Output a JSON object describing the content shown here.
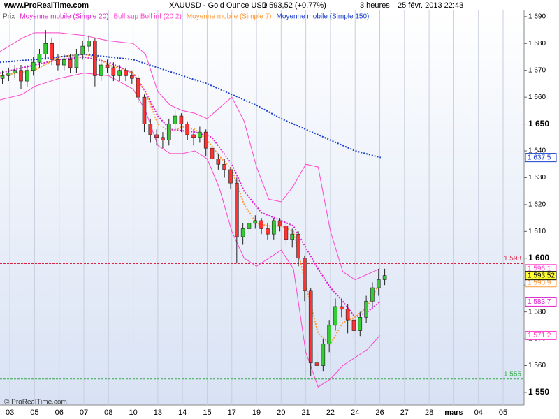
{
  "chart_data": {
    "type": "candlestick",
    "site": "www.ProRealTime.com",
    "title": "XAUUSD - Gold Ounce USD",
    "quote": "1 593,52 (+0,77%)",
    "interval": "3 heures",
    "timestamp": "25 févr. 2013 22:43",
    "copyright": "© ProRealTime.com",
    "price_name": "Prix",
    "price_color": "#555555",
    "up_color": "#33cc33",
    "down_color": "#ff3333",
    "xlim": [
      -0.4,
      20.85
    ],
    "xticks": [
      {
        "value": 0,
        "label": "03"
      },
      {
        "value": 1,
        "label": "05"
      },
      {
        "value": 2,
        "label": "06"
      },
      {
        "value": 3,
        "label": "07"
      },
      {
        "value": 4,
        "label": "08"
      },
      {
        "value": 5,
        "label": "10"
      },
      {
        "value": 6,
        "label": "13"
      },
      {
        "value": 7,
        "label": "14"
      },
      {
        "value": 8,
        "label": "15"
      },
      {
        "value": 9,
        "label": "17"
      },
      {
        "value": 10,
        "label": "19"
      },
      {
        "value": 11,
        "label": "20"
      },
      {
        "value": 12,
        "label": "21"
      },
      {
        "value": 13,
        "label": "22"
      },
      {
        "value": 14,
        "label": "24"
      },
      {
        "value": 15,
        "label": "26"
      },
      {
        "value": 16,
        "label": "27"
      },
      {
        "value": 17,
        "label": "28"
      },
      {
        "value": 18,
        "label": "mars"
      },
      {
        "value": 19,
        "label": "04"
      },
      {
        "value": 20,
        "label": "05"
      }
    ],
    "ylim": [
      1545.3,
      1692.3
    ],
    "yticks": [
      {
        "value": 1550,
        "label": "1 550"
      },
      {
        "value": 1560,
        "label": "1 560"
      },
      {
        "value": 1570,
        "label": "1 570"
      },
      {
        "value": 1580,
        "label": "1 580"
      },
      {
        "value": 1590,
        "label": "1 590"
      },
      {
        "value": 1600,
        "label": "1 600"
      },
      {
        "value": 1610,
        "label": "1 610"
      },
      {
        "value": 1620,
        "label": "1 620"
      },
      {
        "value": 1630,
        "label": "1 630"
      },
      {
        "value": 1640,
        "label": "1 640"
      },
      {
        "value": 1650,
        "label": "1 650"
      },
      {
        "value": 1660,
        "label": "1 660"
      },
      {
        "value": 1670,
        "label": "1 670"
      },
      {
        "value": 1680,
        "label": "1 680"
      },
      {
        "value": 1690,
        "label": "1 690"
      }
    ],
    "x": [
      -0.3,
      -0.05,
      0.2,
      0.45,
      0.7,
      0.95,
      1.2,
      1.45,
      1.7,
      1.95,
      2.2,
      2.45,
      2.7,
      2.95,
      3.2,
      3.45,
      3.7,
      3.95,
      4.2,
      4.45,
      4.7,
      4.95,
      5.2,
      5.45,
      5.7,
      5.95,
      6.2,
      6.45,
      6.7,
      6.95,
      7.2,
      7.45,
      7.7,
      7.95,
      8.2,
      8.45,
      8.7,
      8.95,
      9.2,
      9.45,
      9.7,
      9.95,
      10.2,
      10.45,
      10.7,
      10.95,
      11.2,
      11.45,
      11.7,
      11.95,
      12.2,
      12.45,
      12.7,
      12.95,
      13.2,
      13.45,
      13.7,
      13.95,
      14.2,
      14.45,
      14.7,
      14.95,
      15.2
    ],
    "open": [
      1667,
      1668,
      1669,
      1670,
      1666,
      1670,
      1673,
      1676,
      1680,
      1674,
      1672,
      1674,
      1671,
      1676,
      1679,
      1681,
      1668,
      1672,
      1671,
      1668,
      1670,
      1668,
      1667,
      1660,
      1650,
      1646,
      1645,
      1644,
      1650,
      1653,
      1650,
      1646,
      1645,
      1647,
      1641,
      1637,
      1635,
      1633,
      1628,
      1608,
      1611,
      1613,
      1614,
      1611,
      1609,
      1614,
      1612,
      1607,
      1609,
      1600,
      1588,
      1561,
      1560,
      1568,
      1575,
      1582,
      1581,
      1577,
      1573,
      1578,
      1584,
      1589,
      1592
    ],
    "high": [
      1670,
      1671,
      1672,
      1672,
      1672,
      1675,
      1678,
      1685,
      1682,
      1676,
      1676,
      1676,
      1678,
      1681,
      1683,
      1682,
      1674,
      1674,
      1673,
      1672,
      1671,
      1670,
      1668,
      1661,
      1652,
      1648,
      1647,
      1652,
      1655,
      1654,
      1651,
      1648,
      1649,
      1648,
      1642,
      1639,
      1637,
      1634,
      1630,
      1613,
      1615,
      1616,
      1615,
      1613,
      1615,
      1615,
      1613,
      1611,
      1610,
      1601,
      1589,
      1566,
      1570,
      1577,
      1585,
      1585,
      1583,
      1579,
      1580,
      1586,
      1591,
      1596,
      1596.1
    ],
    "low": [
      1665,
      1666,
      1667,
      1663,
      1664,
      1668,
      1671,
      1674,
      1672,
      1670,
      1670,
      1669,
      1669,
      1674,
      1677,
      1664,
      1666,
      1669,
      1666,
      1666,
      1666,
      1665,
      1658,
      1647,
      1643,
      1642,
      1641,
      1642,
      1648,
      1647,
      1644,
      1642,
      1643,
      1638,
      1634,
      1633,
      1630,
      1626,
      1598,
      1605,
      1609,
      1611,
      1609,
      1607,
      1607,
      1610,
      1605,
      1604,
      1597,
      1584,
      1556,
      1558,
      1558,
      1565,
      1573,
      1578,
      1572,
      1570,
      1571,
      1576,
      1582,
      1586,
      1590
    ],
    "close": [
      1668,
      1669,
      1670,
      1666,
      1670,
      1673,
      1676,
      1680,
      1674,
      1672,
      1674,
      1671,
      1676,
      1679,
      1681,
      1668,
      1672,
      1671,
      1668,
      1670,
      1668,
      1667,
      1660,
      1650,
      1646,
      1645,
      1644,
      1650,
      1653,
      1650,
      1646,
      1645,
      1647,
      1641,
      1637,
      1635,
      1633,
      1628,
      1608,
      1611,
      1613,
      1614,
      1611,
      1609,
      1614,
      1612,
      1607,
      1609,
      1600,
      1588,
      1561,
      1560,
      1568,
      1575,
      1582,
      1581,
      1577,
      1573,
      1578,
      1584,
      1589,
      1592,
      1593.52
    ],
    "series": [
      {
        "name": "Moyenne mobile (Simple 20)",
        "color": "#e020d0",
        "dashed": true,
        "x": [
          -0.4,
          1,
          2,
          3,
          4,
          5,
          5.5,
          6,
          6.5,
          7.5,
          8.2,
          9,
          9.5,
          10.2,
          11,
          11.5,
          12,
          12.5,
          13,
          13.5,
          14,
          14.5,
          15
        ],
        "values": [
          1669,
          1672,
          1674,
          1675,
          1673,
          1669,
          1662,
          1653,
          1648,
          1647,
          1645,
          1635,
          1625,
          1617,
          1614,
          1612,
          1604,
          1596,
          1589,
          1584,
          1578,
          1580,
          1583.7
        ]
      },
      {
        "name": "Boll sup Boll inf (20 2)",
        "color": "#ff44cc",
        "dashed": false,
        "x": [
          -0.4,
          0.5,
          1,
          2,
          3,
          3.5,
          4,
          5,
          5.5,
          6,
          6.5,
          7,
          7.5,
          8,
          8.5,
          9,
          9.5,
          10,
          10.5,
          11,
          11.5,
          12,
          12.5,
          13,
          13.5,
          14,
          14.5,
          15
        ],
        "values": [
          1677,
          1682,
          1684,
          1684,
          1683,
          1682,
          1681,
          1680,
          1676,
          1662,
          1657,
          1655,
          1654,
          1652,
          1656,
          1660,
          1651,
          1634,
          1622,
          1621,
          1627,
          1635,
          1634,
          1610,
          1595,
          1592,
          1594,
          1596.1
        ],
        "x2": [
          -0.4,
          0.5,
          1,
          2,
          3,
          4,
          5,
          5.5,
          6,
          6.5,
          7,
          7.5,
          8,
          8.5,
          9,
          9.5,
          10,
          10.5,
          11,
          11.5,
          12,
          12.5,
          13,
          13.5,
          14,
          14.5,
          15
        ],
        "values2": [
          1659,
          1661,
          1664,
          1667,
          1669,
          1668,
          1663,
          1655,
          1642,
          1639,
          1639,
          1640,
          1637,
          1626,
          1610,
          1600,
          1597,
          1600,
          1603,
          1596,
          1565,
          1552,
          1555,
          1560,
          1563,
          1566,
          1571.2
        ]
      },
      {
        "name": "Moyenne mobile (Simple 7)",
        "color": "#ff9933",
        "dashed": true,
        "x": [
          -0.4,
          1,
          2,
          3,
          3.5,
          4,
          5,
          5.5,
          6,
          6.5,
          7,
          7.5,
          8,
          8.5,
          9,
          9.5,
          10,
          10.5,
          11,
          11.5,
          12,
          12.5,
          13,
          13.5,
          14,
          14.5,
          15
        ],
        "values": [
          1668,
          1670,
          1675,
          1676,
          1675,
          1672,
          1669,
          1662,
          1650,
          1647,
          1649,
          1648,
          1644,
          1638,
          1633,
          1620,
          1613,
          1612,
          1612,
          1610,
          1590,
          1572,
          1568,
          1576,
          1578,
          1582,
          1590.9
        ]
      },
      {
        "name": "Moyenne mobile (Simple 150)",
        "color": "#1a3fcc",
        "dashed": true,
        "x": [
          -0.4,
          1,
          2,
          3,
          4,
          5,
          6,
          7,
          8,
          9,
          10,
          11,
          12,
          13,
          14,
          15.04
        ],
        "values": [
          1673,
          1674,
          1675,
          1676,
          1675,
          1674,
          1671,
          1668,
          1665,
          1661,
          1657,
          1652,
          1648,
          1644,
          1640,
          1637.5
        ]
      }
    ],
    "levels": [
      {
        "value": 1598,
        "label": "1 598",
        "color": "#dd2244"
      },
      {
        "value": 1555,
        "label": "1 555",
        "color": "#33aa44"
      }
    ],
    "tags": [
      {
        "value": 1637.5,
        "label": "1 637,5",
        "color": "#1a3fcc",
        "bg": "#ffffff"
      },
      {
        "value": 1596.1,
        "label": "1 596,1",
        "color": "#ff44cc",
        "bg": "#ffffff"
      },
      {
        "value": 1590.9,
        "label": "1 590,9",
        "color": "#ff9933",
        "bg": "#ffffff"
      },
      {
        "value": 1593.52,
        "label": "1 593,52",
        "color": "#000000",
        "bg": "#ffff33"
      },
      {
        "value": 1583.7,
        "label": "1 583,7",
        "color": "#e020d0",
        "bg": "#ffffff"
      },
      {
        "value": 1571.2,
        "label": "1 571,2",
        "color": "#ff44cc",
        "bg": "#ffffff"
      }
    ]
  }
}
